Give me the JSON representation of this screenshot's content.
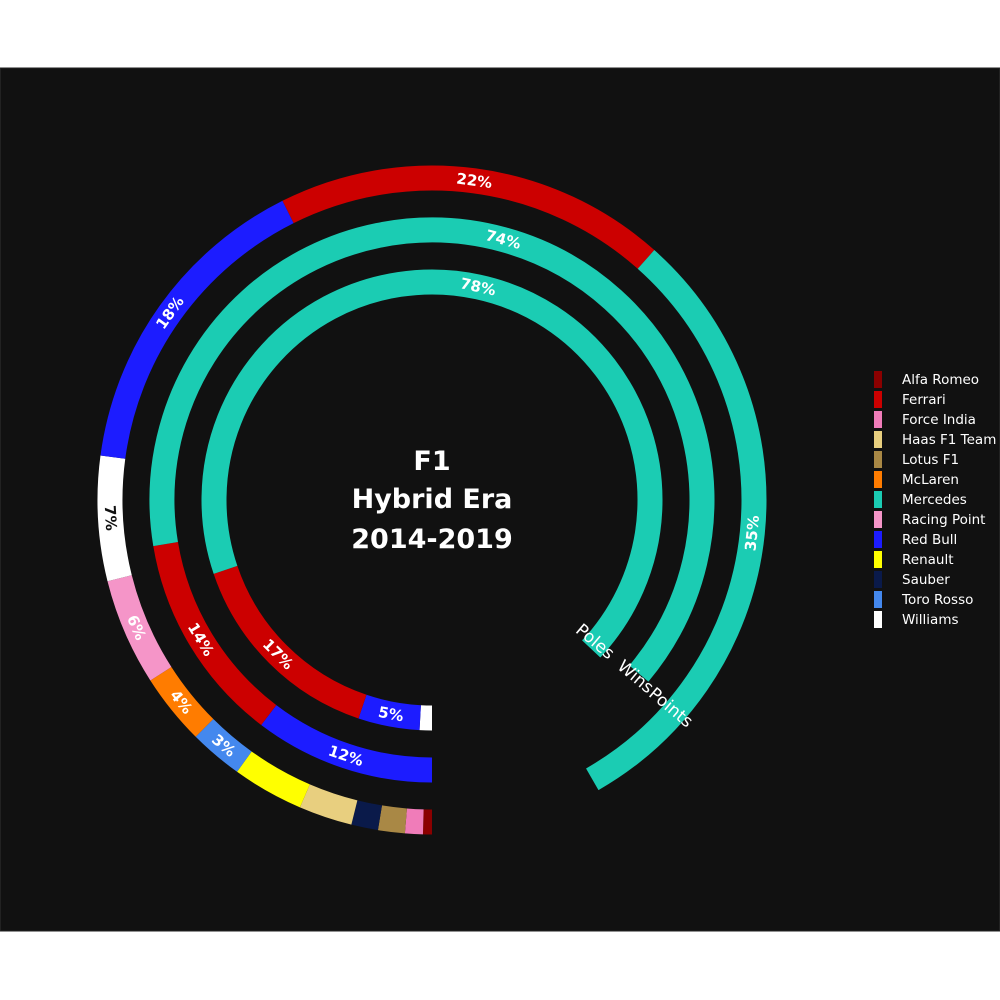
{
  "title_lines": [
    "F1",
    "Hybrid Era",
    "2014-2019"
  ],
  "chart_data": {
    "type": "radial-bar",
    "teams": [
      {
        "name": "Alfa Romeo",
        "color": "#8b0000"
      },
      {
        "name": "Ferrari",
        "color": "#cc0000"
      },
      {
        "name": "Force India",
        "color": "#f07cb9"
      },
      {
        "name": "Haas F1 Team",
        "color": "#e8cf7f"
      },
      {
        "name": "Lotus F1",
        "color": "#a98845"
      },
      {
        "name": "McLaren",
        "color": "#ff7c00"
      },
      {
        "name": "Mercedes",
        "color": "#1bccb3"
      },
      {
        "name": "Racing Point",
        "color": "#f595c8"
      },
      {
        "name": "Red Bull",
        "color": "#1c1cff"
      },
      {
        "name": "Renault",
        "color": "#ffff00"
      },
      {
        "name": "Sauber",
        "color": "#0a1a4a"
      },
      {
        "name": "Toro Rosso",
        "color": "#4488ee"
      },
      {
        "name": "Williams",
        "color": "#ffffff"
      }
    ],
    "rings": [
      {
        "name": "Points",
        "segments": [
          {
            "team": "Alfa Romeo",
            "value": 0.5
          },
          {
            "team": "Force India",
            "value": 1.0
          },
          {
            "team": "Lotus F1",
            "value": 1.5
          },
          {
            "team": "Sauber",
            "value": 1.5
          },
          {
            "team": "Haas F1 Team",
            "value": 3.0
          },
          {
            "team": "Renault",
            "value": 4.0
          },
          {
            "team": "Toro Rosso",
            "value": 3.0,
            "label": "3%"
          },
          {
            "team": "McLaren",
            "value": 4.0,
            "label": "4%"
          },
          {
            "team": "Racing Point",
            "value": 6.0,
            "label": "6%"
          },
          {
            "team": "Williams",
            "value": 7.0,
            "label": "7%"
          },
          {
            "team": "Red Bull",
            "value": 18.0,
            "label": "18%"
          },
          {
            "team": "Ferrari",
            "value": 22.0,
            "label": "22%"
          },
          {
            "team": "Mercedes",
            "value": 35.0,
            "label": "35%"
          }
        ]
      },
      {
        "name": "Wins",
        "segments": [
          {
            "team": "Red Bull",
            "value": 12.0,
            "label": "12%"
          },
          {
            "team": "Ferrari",
            "value": 14.0,
            "label": "14%"
          },
          {
            "team": "Mercedes",
            "value": 74.0,
            "label": "74%"
          }
        ]
      },
      {
        "name": "Poles",
        "segments": [
          {
            "team": "Williams",
            "value": 1.0
          },
          {
            "team": "Red Bull",
            "value": 5.0,
            "label": "5%"
          },
          {
            "team": "Ferrari",
            "value": 17.0,
            "label": "17%"
          },
          {
            "team": "Mercedes",
            "value": 78.0,
            "label": "78%"
          }
        ]
      }
    ]
  }
}
